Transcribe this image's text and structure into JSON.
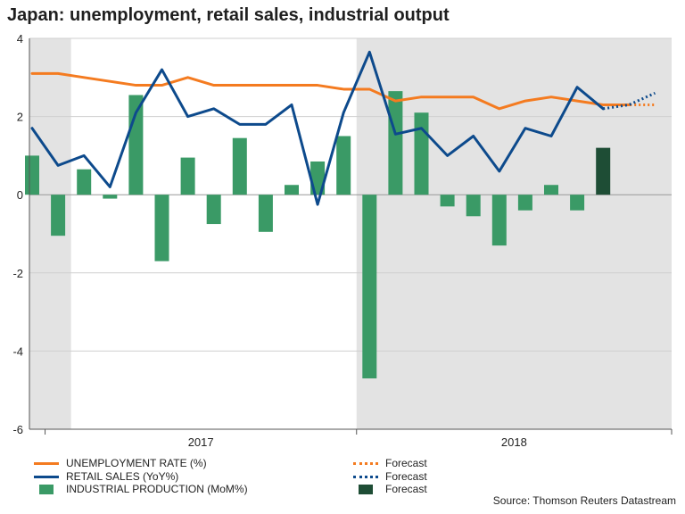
{
  "chart_data": {
    "type": "combo",
    "title": "Japan: unemployment, retail sales, industrial output",
    "ylim": [
      -6,
      4
    ],
    "yticks": [
      "4",
      "2",
      "0",
      "-2",
      "-4",
      "-6"
    ],
    "ytick_values": [
      4,
      2,
      0,
      -2,
      -4,
      -6
    ],
    "x_period_labels": [
      "2017",
      "2018"
    ],
    "months": [
      "2016-12",
      "2017-01",
      "2017-02",
      "2017-03",
      "2017-04",
      "2017-05",
      "2017-06",
      "2017-07",
      "2017-08",
      "2017-09",
      "2017-10",
      "2017-11",
      "2017-12",
      "2018-01",
      "2018-02",
      "2018-03",
      "2018-04",
      "2018-05",
      "2018-06",
      "2018-07",
      "2018-08",
      "2018-09",
      "2018-10",
      "2018-11",
      "2018-12"
    ],
    "shaded_regions": [
      [
        "2016-12",
        "2017-01"
      ],
      [
        "2018-01",
        "2018-12"
      ]
    ],
    "series": [
      {
        "name": "UNEMPLOYMENT RATE (%)",
        "kind": "line",
        "color": "#f47b20",
        "values": [
          3.1,
          3.1,
          3.0,
          2.9,
          2.8,
          2.8,
          3.0,
          2.8,
          2.8,
          2.8,
          2.8,
          2.8,
          2.7,
          2.7,
          2.4,
          2.5,
          2.5,
          2.5,
          2.2,
          2.4,
          2.5,
          2.4,
          2.3,
          2.3,
          null
        ],
        "forecast_from_index": 22,
        "forecast_values": [
          2.3,
          2.3
        ]
      },
      {
        "name": "RETAIL SALES (YoY%)",
        "kind": "line",
        "color": "#0d4a8c",
        "values": [
          1.7,
          0.75,
          1.0,
          0.2,
          2.1,
          3.2,
          2.0,
          2.2,
          1.8,
          1.8,
          2.3,
          -0.25,
          2.1,
          3.65,
          1.55,
          1.7,
          1.0,
          1.5,
          0.6,
          1.7,
          1.5,
          2.75,
          2.2,
          null,
          null
        ],
        "forecast_from_index": 22,
        "forecast_values": [
          2.3,
          2.6
        ]
      },
      {
        "name": "INDUSTRIAL PRODUCTION (MoM%)",
        "kind": "bar",
        "color": "#3a9a66",
        "forecast_color": "#1e4d35",
        "values": [
          1.0,
          -1.05,
          0.65,
          -0.1,
          2.55,
          -1.7,
          0.95,
          -0.75,
          1.45,
          -0.95,
          0.25,
          0.85,
          1.5,
          -4.7,
          2.65,
          2.1,
          -0.3,
          -0.55,
          -1.3,
          -0.4,
          0.25,
          -0.4,
          1.2
        ],
        "forecast_index": 22
      }
    ],
    "legend": {
      "unemployment": "UNEMPLOYMENT RATE (%)",
      "retail": "RETAIL SALES (YoY%)",
      "industrial": "INDUSTRIAL PRODUCTION (MoM%)",
      "forecast1": "Forecast",
      "forecast2": "Forecast",
      "forecast3": "Forecast"
    },
    "source": "Source: Thomson Reuters Datastream",
    "colors": {
      "shade": "#e3e3e3",
      "grid": "#cfcfcf",
      "axis": "#555555"
    }
  }
}
